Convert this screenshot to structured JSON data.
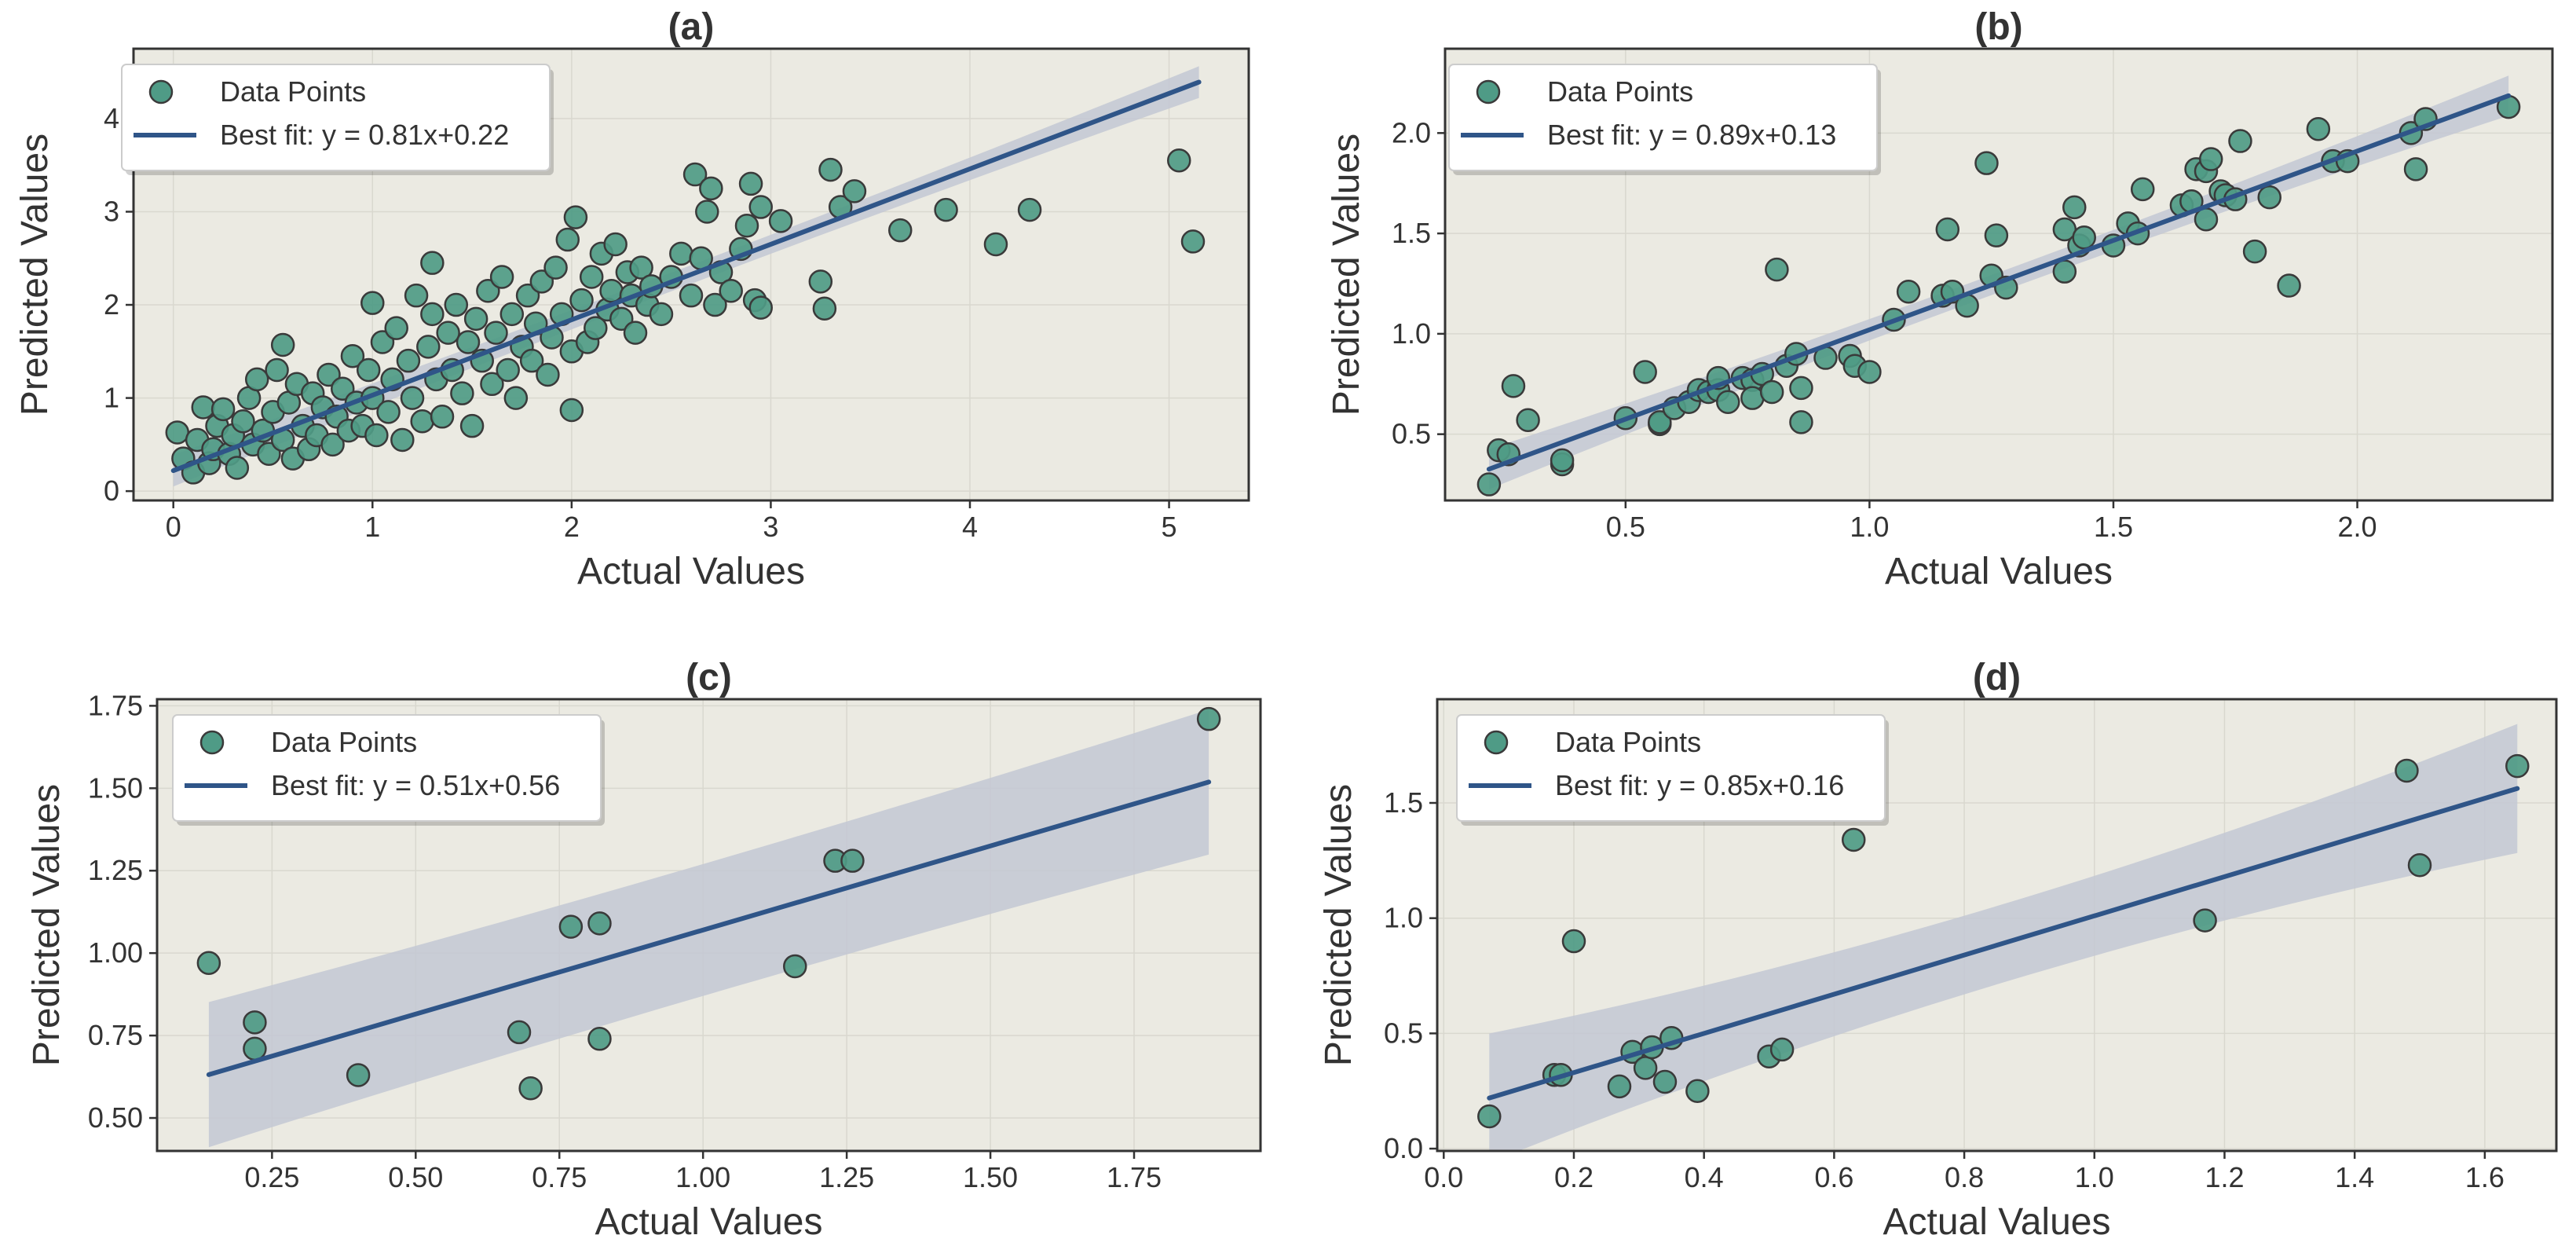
{
  "colors": {
    "panel_bg": "#ebeae2",
    "grid": "#d9d8cf",
    "spine": "#333333",
    "point_fill": "#4f9b86",
    "point_edge": "#3a3a3a",
    "line": "#2f5588",
    "band": "#c3c8d3",
    "text": "#333333"
  },
  "legend": {
    "points_label": "Data Points"
  },
  "chart_data": [
    {
      "type": "scatter",
      "panel": "a",
      "title": "(a)",
      "xlabel": "Actual Values",
      "ylabel": "Predicted Values",
      "xlim": [
        -0.2,
        5.4
      ],
      "ylim": [
        -0.1,
        4.75
      ],
      "xticks": [
        0,
        1,
        2,
        3,
        4,
        5
      ],
      "xtick_labels": [
        "0",
        "1",
        "2",
        "3",
        "4",
        "5"
      ],
      "yticks": [
        0,
        1,
        2,
        3,
        4
      ],
      "ytick_labels": [
        "0",
        "1",
        "2",
        "3",
        "4"
      ],
      "fit": {
        "slope": 0.81,
        "intercept": 0.22,
        "x_range": [
          0.0,
          5.15
        ],
        "band_halfwidth": [
          0.1,
          0.17
        ],
        "label": "Best fit: y = 0.81x+0.22"
      },
      "points": [
        [
          0.02,
          0.63
        ],
        [
          0.05,
          0.35
        ],
        [
          0.1,
          0.2
        ],
        [
          0.12,
          0.55
        ],
        [
          0.15,
          0.9
        ],
        [
          0.18,
          0.3
        ],
        [
          0.2,
          0.45
        ],
        [
          0.22,
          0.7
        ],
        [
          0.25,
          0.88
        ],
        [
          0.28,
          0.4
        ],
        [
          0.3,
          0.6
        ],
        [
          0.32,
          0.25
        ],
        [
          0.35,
          0.75
        ],
        [
          0.38,
          1.0
        ],
        [
          0.4,
          0.5
        ],
        [
          0.42,
          1.2
        ],
        [
          0.45,
          0.65
        ],
        [
          0.48,
          0.4
        ],
        [
          0.5,
          0.85
        ],
        [
          0.52,
          1.3
        ],
        [
          0.55,
          0.55
        ],
        [
          0.55,
          1.57
        ],
        [
          0.58,
          0.95
        ],
        [
          0.6,
          0.35
        ],
        [
          0.62,
          1.15
        ],
        [
          0.65,
          0.7
        ],
        [
          0.68,
          0.45
        ],
        [
          0.7,
          1.05
        ],
        [
          0.72,
          0.6
        ],
        [
          0.75,
          0.9
        ],
        [
          0.78,
          1.25
        ],
        [
          0.8,
          0.5
        ],
        [
          0.82,
          0.8
        ],
        [
          0.85,
          1.1
        ],
        [
          0.88,
          0.65
        ],
        [
          0.9,
          1.45
        ],
        [
          0.92,
          0.95
        ],
        [
          0.95,
          0.7
        ],
        [
          0.98,
          1.3
        ],
        [
          1.0,
          2.02
        ],
        [
          1.0,
          1.0
        ],
        [
          1.02,
          0.6
        ],
        [
          1.05,
          1.6
        ],
        [
          1.08,
          0.85
        ],
        [
          1.1,
          1.2
        ],
        [
          1.12,
          1.75
        ],
        [
          1.15,
          0.55
        ],
        [
          1.18,
          1.4
        ],
        [
          1.2,
          1.0
        ],
        [
          1.22,
          2.1
        ],
        [
          1.25,
          0.75
        ],
        [
          1.28,
          1.55
        ],
        [
          1.3,
          1.9
        ],
        [
          1.3,
          2.45
        ],
        [
          1.32,
          1.2
        ],
        [
          1.35,
          0.8
        ],
        [
          1.38,
          1.7
        ],
        [
          1.4,
          1.3
        ],
        [
          1.42,
          2.0
        ],
        [
          1.45,
          1.05
        ],
        [
          1.48,
          1.6
        ],
        [
          1.5,
          0.7
        ],
        [
          1.52,
          1.85
        ],
        [
          1.55,
          1.4
        ],
        [
          1.58,
          2.15
        ],
        [
          1.6,
          1.15
        ],
        [
          1.62,
          1.7
        ],
        [
          1.65,
          2.3
        ],
        [
          1.68,
          1.3
        ],
        [
          1.7,
          1.9
        ],
        [
          1.72,
          1.0
        ],
        [
          1.75,
          1.55
        ],
        [
          1.78,
          2.1
        ],
        [
          1.8,
          1.4
        ],
        [
          1.82,
          1.8
        ],
        [
          1.85,
          2.25
        ],
        [
          1.88,
          1.25
        ],
        [
          1.9,
          1.65
        ],
        [
          1.92,
          2.4
        ],
        [
          1.95,
          1.9
        ],
        [
          1.98,
          2.7
        ],
        [
          2.0,
          0.87
        ],
        [
          2.0,
          1.5
        ],
        [
          2.02,
          2.94
        ],
        [
          2.05,
          2.05
        ],
        [
          2.08,
          1.6
        ],
        [
          2.1,
          2.3
        ],
        [
          2.12,
          1.75
        ],
        [
          2.15,
          2.55
        ],
        [
          2.18,
          1.95
        ],
        [
          2.2,
          2.15
        ],
        [
          2.22,
          2.65
        ],
        [
          2.25,
          1.85
        ],
        [
          2.28,
          2.35
        ],
        [
          2.3,
          2.1
        ],
        [
          2.32,
          1.7
        ],
        [
          2.35,
          2.4
        ],
        [
          2.38,
          2.0
        ],
        [
          2.4,
          2.2
        ],
        [
          2.45,
          1.9
        ],
        [
          2.5,
          2.3
        ],
        [
          2.55,
          2.55
        ],
        [
          2.6,
          2.1
        ],
        [
          2.62,
          3.4
        ],
        [
          2.65,
          2.5
        ],
        [
          2.68,
          3.0
        ],
        [
          2.7,
          3.25
        ],
        [
          2.72,
          2.0
        ],
        [
          2.75,
          2.35
        ],
        [
          2.8,
          2.15
        ],
        [
          2.85,
          2.6
        ],
        [
          2.88,
          2.85
        ],
        [
          2.9,
          3.3
        ],
        [
          2.92,
          2.05
        ],
        [
          2.95,
          1.97
        ],
        [
          2.95,
          3.05
        ],
        [
          3.05,
          2.9
        ],
        [
          3.25,
          2.25
        ],
        [
          3.27,
          1.96
        ],
        [
          3.3,
          3.45
        ],
        [
          3.35,
          3.05
        ],
        [
          3.42,
          3.22
        ],
        [
          3.65,
          2.8
        ],
        [
          3.88,
          3.02
        ],
        [
          4.13,
          2.65
        ],
        [
          4.3,
          3.02
        ],
        [
          5.05,
          3.55
        ],
        [
          5.12,
          2.68
        ]
      ]
    },
    {
      "type": "scatter",
      "panel": "b",
      "title": "(b)",
      "xlabel": "Actual Values",
      "ylabel": "Predicted Values",
      "xlim": [
        0.13,
        2.4
      ],
      "ylim": [
        0.17,
        2.42
      ],
      "xticks": [
        0.5,
        1.0,
        1.5,
        2.0
      ],
      "xtick_labels": [
        "0.5",
        "1.0",
        "1.5",
        "2.0"
      ],
      "yticks": [
        0.5,
        1.0,
        1.5,
        2.0
      ],
      "ytick_labels": [
        "0.5",
        "1.0",
        "1.5",
        "2.0"
      ],
      "fit": {
        "slope": 0.89,
        "intercept": 0.13,
        "x_range": [
          0.22,
          2.31
        ],
        "band_halfwidth": [
          0.05,
          0.1
        ],
        "label": "Best fit: y = 0.89x+0.13"
      },
      "points": [
        [
          0.22,
          0.25
        ],
        [
          0.24,
          0.42
        ],
        [
          0.26,
          0.4
        ],
        [
          0.27,
          0.74
        ],
        [
          0.3,
          0.57
        ],
        [
          0.37,
          0.35
        ],
        [
          0.37,
          0.37
        ],
        [
          0.5,
          0.58
        ],
        [
          0.54,
          0.81
        ],
        [
          0.57,
          0.55
        ],
        [
          0.57,
          0.56
        ],
        [
          0.6,
          0.63
        ],
        [
          0.63,
          0.66
        ],
        [
          0.65,
          0.72
        ],
        [
          0.67,
          0.71
        ],
        [
          0.69,
          0.72
        ],
        [
          0.69,
          0.78
        ],
        [
          0.71,
          0.66
        ],
        [
          0.74,
          0.78
        ],
        [
          0.76,
          0.77
        ],
        [
          0.76,
          0.68
        ],
        [
          0.78,
          0.8
        ],
        [
          0.8,
          0.71
        ],
        [
          0.81,
          1.32
        ],
        [
          0.83,
          0.84
        ],
        [
          0.85,
          0.9
        ],
        [
          0.86,
          0.56
        ],
        [
          0.86,
          0.73
        ],
        [
          0.91,
          0.88
        ],
        [
          0.96,
          0.89
        ],
        [
          0.97,
          0.84
        ],
        [
          1.0,
          0.81
        ],
        [
          1.05,
          1.07
        ],
        [
          1.08,
          1.21
        ],
        [
          1.15,
          1.19
        ],
        [
          1.16,
          1.52
        ],
        [
          1.17,
          1.21
        ],
        [
          1.2,
          1.14
        ],
        [
          1.24,
          1.85
        ],
        [
          1.25,
          1.29
        ],
        [
          1.26,
          1.49
        ],
        [
          1.28,
          1.23
        ],
        [
          1.4,
          1.52
        ],
        [
          1.4,
          1.31
        ],
        [
          1.42,
          1.63
        ],
        [
          1.43,
          1.44
        ],
        [
          1.44,
          1.48
        ],
        [
          1.5,
          1.44
        ],
        [
          1.53,
          1.55
        ],
        [
          1.55,
          1.5
        ],
        [
          1.56,
          1.72
        ],
        [
          1.64,
          1.64
        ],
        [
          1.66,
          1.66
        ],
        [
          1.67,
          1.82
        ],
        [
          1.69,
          1.81
        ],
        [
          1.69,
          1.57
        ],
        [
          1.7,
          1.87
        ],
        [
          1.72,
          1.71
        ],
        [
          1.73,
          1.69
        ],
        [
          1.75,
          1.67
        ],
        [
          1.76,
          1.96
        ],
        [
          1.79,
          1.41
        ],
        [
          1.82,
          1.68
        ],
        [
          1.86,
          1.24
        ],
        [
          1.92,
          2.02
        ],
        [
          1.95,
          1.86
        ],
        [
          1.98,
          1.86
        ],
        [
          2.11,
          2.0
        ],
        [
          2.12,
          1.82
        ],
        [
          2.14,
          2.07
        ],
        [
          2.31,
          2.13
        ]
      ]
    },
    {
      "type": "scatter",
      "panel": "c",
      "title": "(c)",
      "xlabel": "Actual Values",
      "ylabel": "Predicted Values",
      "xlim": [
        0.05,
        1.97
      ],
      "ylim": [
        0.4,
        1.77
      ],
      "xticks": [
        0.25,
        0.5,
        0.75,
        1.0,
        1.25,
        1.5,
        1.75
      ],
      "xtick_labels": [
        "0.25",
        "0.50",
        "0.75",
        "1.00",
        "1.25",
        "1.50",
        "1.75"
      ],
      "yticks": [
        0.5,
        0.75,
        1.0,
        1.25,
        1.5,
        1.75
      ],
      "ytick_labels": [
        "0.50",
        "0.75",
        "1.00",
        "1.25",
        "1.50",
        "1.75"
      ],
      "fit": {
        "slope": 0.51,
        "intercept": 0.56,
        "x_range": [
          0.14,
          1.88
        ],
        "band_halfwidth": [
          0.2,
          0.22
        ],
        "label": "Best fit: y = 0.51x+0.56"
      },
      "points": [
        [
          0.14,
          0.97
        ],
        [
          0.22,
          0.79
        ],
        [
          0.22,
          0.71
        ],
        [
          0.4,
          0.63
        ],
        [
          0.68,
          0.76
        ],
        [
          0.7,
          0.59
        ],
        [
          0.77,
          1.08
        ],
        [
          0.82,
          1.09
        ],
        [
          0.82,
          0.74
        ],
        [
          1.16,
          0.96
        ],
        [
          1.23,
          1.28
        ],
        [
          1.26,
          1.28
        ],
        [
          1.88,
          1.71
        ]
      ]
    },
    {
      "type": "scatter",
      "panel": "d",
      "title": "(d)",
      "xlabel": "Actual Values",
      "ylabel": "Predicted Values",
      "xlim": [
        -0.01,
        1.71
      ],
      "ylim": [
        -0.01,
        1.95
      ],
      "xticks": [
        0.0,
        0.2,
        0.4,
        0.6,
        0.8,
        1.0,
        1.2,
        1.4,
        1.6
      ],
      "xtick_labels": [
        "0.0",
        "0.2",
        "0.4",
        "0.6",
        "0.8",
        "1.0",
        "1.2",
        "1.4",
        "1.6"
      ],
      "yticks": [
        0.0,
        0.5,
        1.0,
        1.5
      ],
      "ytick_labels": [
        "0.0",
        "0.5",
        "1.0",
        "1.5"
      ],
      "fit": {
        "slope": 0.85,
        "intercept": 0.16,
        "x_range": [
          0.07,
          1.65
        ],
        "band_halfwidth": [
          0.17,
          0.28
        ],
        "label": "Best fit: y = 0.85x+0.16"
      },
      "points": [
        [
          0.07,
          0.14
        ],
        [
          0.17,
          0.32
        ],
        [
          0.18,
          0.32
        ],
        [
          0.2,
          0.9
        ],
        [
          0.27,
          0.27
        ],
        [
          0.29,
          0.42
        ],
        [
          0.31,
          0.35
        ],
        [
          0.32,
          0.44
        ],
        [
          0.34,
          0.29
        ],
        [
          0.35,
          0.48
        ],
        [
          0.39,
          0.25
        ],
        [
          0.5,
          0.4
        ],
        [
          0.52,
          0.43
        ],
        [
          0.63,
          1.34
        ],
        [
          1.17,
          0.99
        ],
        [
          1.48,
          1.64
        ],
        [
          1.5,
          1.23
        ],
        [
          1.65,
          1.66
        ]
      ]
    }
  ]
}
